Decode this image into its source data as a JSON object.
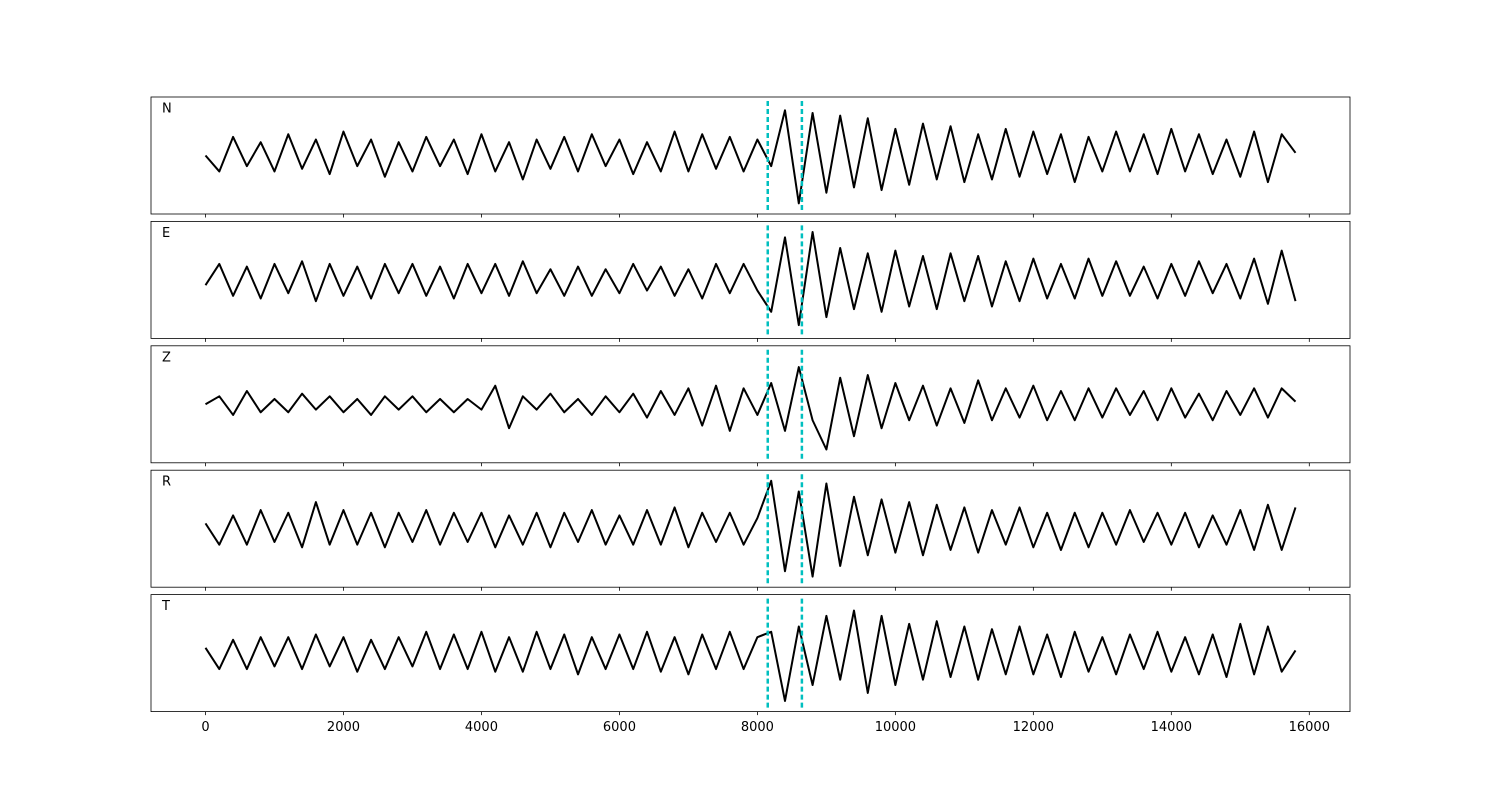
{
  "chart_data": {
    "type": "line",
    "x": [
      0,
      200,
      400,
      600,
      800,
      1000,
      1200,
      1400,
      1600,
      1800,
      2000,
      2200,
      2400,
      2600,
      2800,
      3000,
      3200,
      3400,
      3600,
      3800,
      4000,
      4200,
      4400,
      4600,
      4800,
      5000,
      5200,
      5400,
      5600,
      5800,
      6000,
      6200,
      6400,
      6600,
      6800,
      7000,
      7200,
      7400,
      7600,
      7800,
      8000,
      8200,
      8400,
      8600,
      8800,
      9000,
      9200,
      9400,
      9600,
      9800,
      10000,
      10200,
      10400,
      10600,
      10800,
      11000,
      11200,
      11400,
      11600,
      11800,
      12000,
      12200,
      12400,
      12600,
      12800,
      13000,
      13200,
      13400,
      13600,
      13800,
      14000,
      14200,
      14400,
      14600,
      14800,
      15000,
      15200,
      15400,
      15600,
      15800
    ],
    "series": [
      {
        "name": "N",
        "color": "#000000",
        "values": [
          0,
          -0.3,
          0.35,
          -0.2,
          0.25,
          -0.3,
          0.4,
          -0.25,
          0.3,
          -0.35,
          0.45,
          -0.2,
          0.3,
          -0.4,
          0.25,
          -0.3,
          0.35,
          -0.2,
          0.3,
          -0.35,
          0.4,
          -0.3,
          0.25,
          -0.45,
          0.3,
          -0.25,
          0.35,
          -0.3,
          0.4,
          -0.2,
          0.3,
          -0.35,
          0.25,
          -0.3,
          0.45,
          -0.3,
          0.4,
          -0.25,
          0.35,
          -0.3,
          0.3,
          -0.2,
          0.85,
          -0.9,
          0.8,
          -0.7,
          0.75,
          -0.6,
          0.7,
          -0.65,
          0.5,
          -0.55,
          0.6,
          -0.45,
          0.55,
          -0.5,
          0.4,
          -0.45,
          0.5,
          -0.4,
          0.45,
          -0.35,
          0.4,
          -0.5,
          0.35,
          -0.3,
          0.45,
          -0.3,
          0.4,
          -0.35,
          0.5,
          -0.3,
          0.4,
          -0.35,
          0.3,
          -0.4,
          0.45,
          -0.5,
          0.4,
          0.05
        ]
      },
      {
        "name": "E",
        "color": "#000000",
        "values": [
          -0.1,
          0.3,
          -0.3,
          0.25,
          -0.35,
          0.3,
          -0.25,
          0.35,
          -0.4,
          0.3,
          -0.3,
          0.25,
          -0.35,
          0.3,
          -0.25,
          0.3,
          -0.3,
          0.25,
          -0.35,
          0.3,
          -0.25,
          0.3,
          -0.3,
          0.35,
          -0.25,
          0.2,
          -0.3,
          0.25,
          -0.3,
          0.2,
          -0.25,
          0.3,
          -0.2,
          0.25,
          -0.3,
          0.2,
          -0.35,
          0.3,
          -0.25,
          0.3,
          -0.2,
          -0.6,
          0.8,
          -0.85,
          0.9,
          -0.7,
          0.6,
          -0.55,
          0.5,
          -0.6,
          0.55,
          -0.5,
          0.45,
          -0.55,
          0.5,
          -0.4,
          0.45,
          -0.5,
          0.35,
          -0.4,
          0.4,
          -0.35,
          0.3,
          -0.35,
          0.4,
          -0.3,
          0.35,
          -0.3,
          0.25,
          -0.35,
          0.3,
          -0.3,
          0.35,
          -0.25,
          0.3,
          -0.35,
          0.4,
          -0.45,
          0.55,
          -0.4
        ]
      },
      {
        "name": "Z",
        "color": "#000000",
        "values": [
          0,
          0.15,
          -0.2,
          0.25,
          -0.15,
          0.1,
          -0.15,
          0.2,
          -0.1,
          0.15,
          -0.15,
          0.1,
          -0.2,
          0.15,
          -0.1,
          0.15,
          -0.15,
          0.1,
          -0.15,
          0.1,
          -0.1,
          0.35,
          -0.45,
          0.15,
          -0.1,
          0.2,
          -0.15,
          0.1,
          -0.2,
          0.15,
          -0.15,
          0.2,
          -0.25,
          0.25,
          -0.2,
          0.3,
          -0.4,
          0.35,
          -0.5,
          0.3,
          -0.2,
          0.4,
          -0.5,
          0.7,
          -0.3,
          -0.85,
          0.5,
          -0.6,
          0.55,
          -0.45,
          0.4,
          -0.3,
          0.35,
          -0.4,
          0.3,
          -0.35,
          0.45,
          -0.3,
          0.3,
          -0.25,
          0.35,
          -0.3,
          0.25,
          -0.3,
          0.3,
          -0.25,
          0.3,
          -0.2,
          0.25,
          -0.3,
          0.3,
          -0.25,
          0.2,
          -0.3,
          0.25,
          -0.2,
          0.3,
          -0.25,
          0.3,
          0.05
        ]
      },
      {
        "name": "R",
        "color": "#000000",
        "values": [
          0.1,
          -0.3,
          0.25,
          -0.3,
          0.35,
          -0.25,
          0.3,
          -0.35,
          0.5,
          -0.3,
          0.35,
          -0.3,
          0.3,
          -0.35,
          0.3,
          -0.25,
          0.35,
          -0.3,
          0.3,
          -0.25,
          0.3,
          -0.35,
          0.25,
          -0.3,
          0.3,
          -0.35,
          0.3,
          -0.25,
          0.35,
          -0.3,
          0.25,
          -0.3,
          0.35,
          -0.3,
          0.4,
          -0.35,
          0.3,
          -0.25,
          0.3,
          -0.3,
          0.2,
          0.9,
          -0.8,
          0.7,
          -0.9,
          0.85,
          -0.7,
          0.6,
          -0.5,
          0.55,
          -0.45,
          0.5,
          -0.5,
          0.45,
          -0.4,
          0.4,
          -0.45,
          0.35,
          -0.3,
          0.4,
          -0.35,
          0.3,
          -0.4,
          0.3,
          -0.35,
          0.3,
          -0.3,
          0.35,
          -0.25,
          0.3,
          -0.3,
          0.3,
          -0.35,
          0.25,
          -0.3,
          0.35,
          -0.4,
          0.45,
          -0.4,
          0.4
        ]
      },
      {
        "name": "T",
        "color": "#000000",
        "values": [
          0.1,
          -0.3,
          0.25,
          -0.3,
          0.3,
          -0.25,
          0.3,
          -0.3,
          0.35,
          -0.25,
          0.3,
          -0.35,
          0.25,
          -0.3,
          0.3,
          -0.25,
          0.4,
          -0.3,
          0.35,
          -0.3,
          0.4,
          -0.35,
          0.3,
          -0.35,
          0.4,
          -0.3,
          0.35,
          -0.4,
          0.3,
          -0.3,
          0.35,
          -0.3,
          0.4,
          -0.35,
          0.3,
          -0.4,
          0.35,
          -0.3,
          0.4,
          -0.3,
          0.3,
          0.4,
          -0.9,
          0.5,
          -0.6,
          0.7,
          -0.5,
          0.8,
          -0.75,
          0.7,
          -0.6,
          0.55,
          -0.5,
          0.6,
          -0.45,
          0.5,
          -0.5,
          0.45,
          -0.4,
          0.5,
          -0.4,
          0.35,
          -0.45,
          0.4,
          -0.35,
          0.3,
          -0.4,
          0.35,
          -0.3,
          0.4,
          -0.35,
          0.3,
          -0.4,
          0.35,
          -0.45,
          0.55,
          -0.4,
          0.5,
          -0.35,
          0.05
        ]
      }
    ],
    "markers": [
      8150,
      8645
    ],
    "marker_color": "#00bfbf",
    "xlim": [
      -790,
      16590
    ],
    "xticks": [
      0,
      2000,
      4000,
      6000,
      8000,
      10000,
      12000,
      14000,
      16000
    ],
    "ylim": [
      -1.1,
      1.1
    ]
  }
}
